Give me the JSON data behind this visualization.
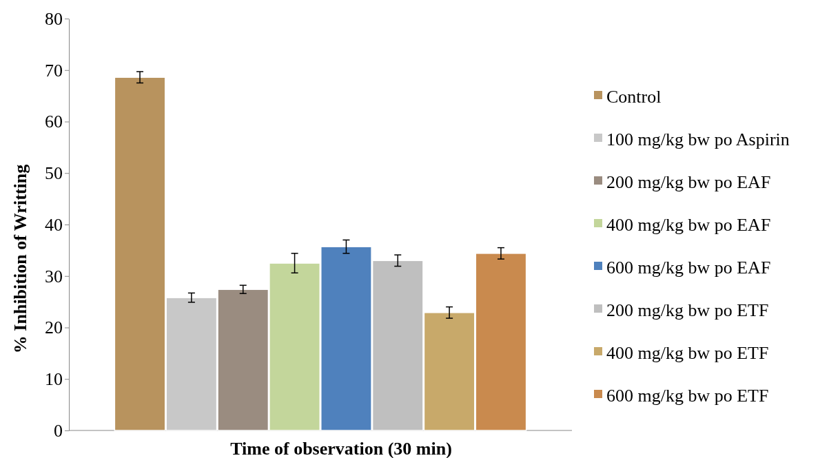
{
  "chart_data": {
    "type": "bar",
    "xlabel": "Time of observation (30 min)",
    "ylabel": "% Inhibition of  Writting",
    "categories": [
      null
    ],
    "ylim": [
      0,
      80
    ],
    "yticks": [
      0,
      10,
      20,
      30,
      40,
      50,
      60,
      70,
      80
    ],
    "grid": false,
    "legend": "right",
    "series": [
      {
        "name": "Control",
        "color": "#b8935e",
        "values": [
          68.6
        ],
        "errors": [
          1.1
        ]
      },
      {
        "name": "100 mg/kg bw po Aspirin",
        "color": "#c8c8c8",
        "values": [
          25.8
        ],
        "errors": [
          0.9
        ]
      },
      {
        "name": "200 mg/kg bw po EAF",
        "color": "#9a8c80",
        "values": [
          27.4
        ],
        "errors": [
          0.8
        ]
      },
      {
        "name": "400 mg/kg bw po EAF",
        "color": "#c3d69b",
        "values": [
          32.5
        ],
        "errors": [
          1.9
        ]
      },
      {
        "name": "600 mg/kg bw po EAF",
        "color": "#4f81bd",
        "values": [
          35.7
        ],
        "errors": [
          1.3
        ]
      },
      {
        "name": "200 mg/kg bw po ETF",
        "color": "#bfbfbf",
        "values": [
          33.0
        ],
        "errors": [
          1.1
        ]
      },
      {
        "name": "400 mg/kg bw po ETF",
        "color": "#c8a96a",
        "values": [
          22.9
        ],
        "errors": [
          1.1
        ]
      },
      {
        "name": "600 mg/kg bw po ETF",
        "color": "#c98a4e",
        "values": [
          34.4
        ],
        "errors": [
          1.1
        ]
      }
    ]
  }
}
